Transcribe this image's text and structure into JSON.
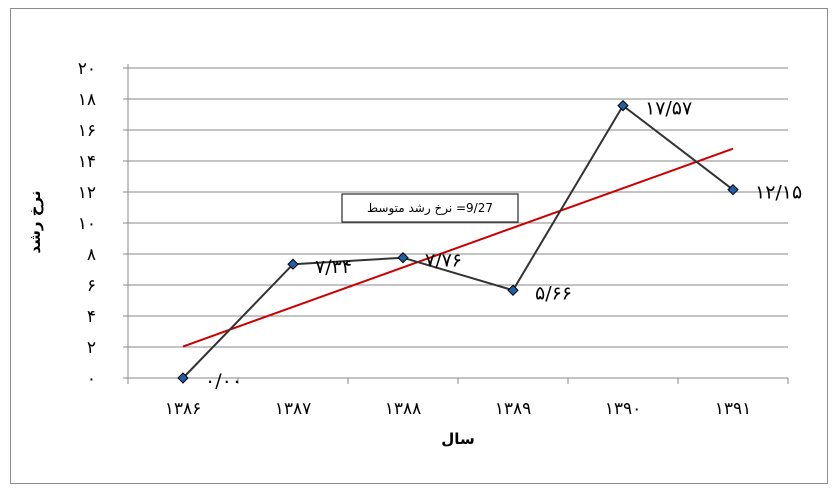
{
  "chart_data": {
    "type": "line",
    "xlabel": "سال",
    "ylabel": "نرخ رشد",
    "categories": [
      "۱۳۸۶",
      "۱۳۸۷",
      "۱۳۸۸",
      "۱۳۸۹",
      "۱۳۹۰",
      "۱۳۹۱"
    ],
    "y_ticks": [
      "۰",
      "۲",
      "۴",
      "۶",
      "۸",
      "۱۰",
      "۱۲",
      "۱۴",
      "۱۶",
      "۱۸",
      "۲۰"
    ],
    "ylim": [
      0,
      20
    ],
    "series": [
      {
        "values": [
          0.0,
          7.34,
          7.76,
          5.66,
          17.57,
          12.15
        ],
        "labels": [
          "۰/۰۰",
          "۷/۳۴",
          "۷/۷۶",
          "۵/۶۶",
          "۱۷/۵۷",
          "۱۲/۱۵"
        ],
        "color": "#333333",
        "marker_color": "#1f5fa8"
      }
    ],
    "trendline": {
      "type": "linear",
      "color": "#cc0000"
    },
    "annotation": "9/27= نرخ رشد متوسط",
    "grid": "horizontal",
    "legend": "none"
  }
}
